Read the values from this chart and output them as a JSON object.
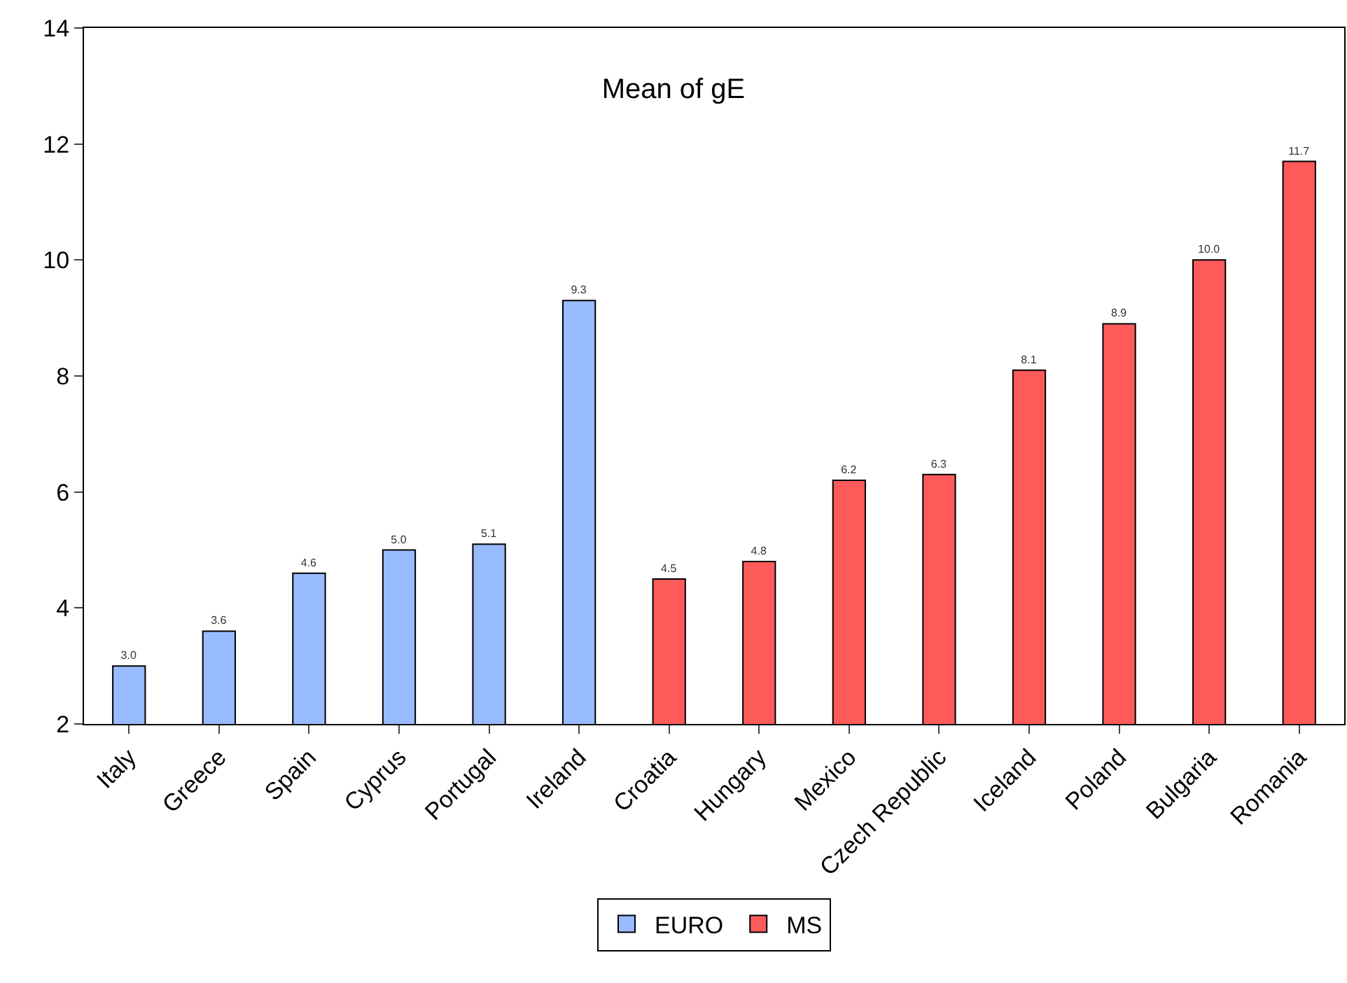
{
  "chart_data": {
    "type": "bar",
    "title": "Mean of gE",
    "categories": [
      "Italy",
      "Greece",
      "Spain",
      "Cyprus",
      "Portugal",
      "Ireland",
      "Croatia",
      "Hungary",
      "Mexico",
      "Czech Republic",
      "Iceland",
      "Poland",
      "Bulgaria",
      "Romania"
    ],
    "series": [
      {
        "name": "EURO",
        "color": "#99bbff",
        "values": [
          3.0,
          3.6,
          4.6,
          5.0,
          5.1,
          9.3,
          null,
          null,
          null,
          null,
          null,
          null,
          null,
          null
        ],
        "value_labels": [
          "3.0",
          "3.6",
          "4.6",
          "5.0",
          "5.1",
          "9.3",
          null,
          null,
          null,
          null,
          null,
          null,
          null,
          null
        ]
      },
      {
        "name": "MS",
        "color": "#ff5a5a",
        "values": [
          null,
          null,
          null,
          null,
          null,
          null,
          4.5,
          4.8,
          6.2,
          6.3,
          8.1,
          8.9,
          10.0,
          11.7
        ],
        "value_labels": [
          null,
          null,
          null,
          null,
          null,
          null,
          "4.5",
          "4.8",
          "6.2",
          "6.3",
          "8.1",
          "8.9",
          "10.0",
          "11.7"
        ]
      }
    ],
    "ylim": [
      2,
      14
    ],
    "yticks": [
      2,
      4,
      6,
      8,
      10,
      12,
      14
    ],
    "legend": "bottom"
  }
}
